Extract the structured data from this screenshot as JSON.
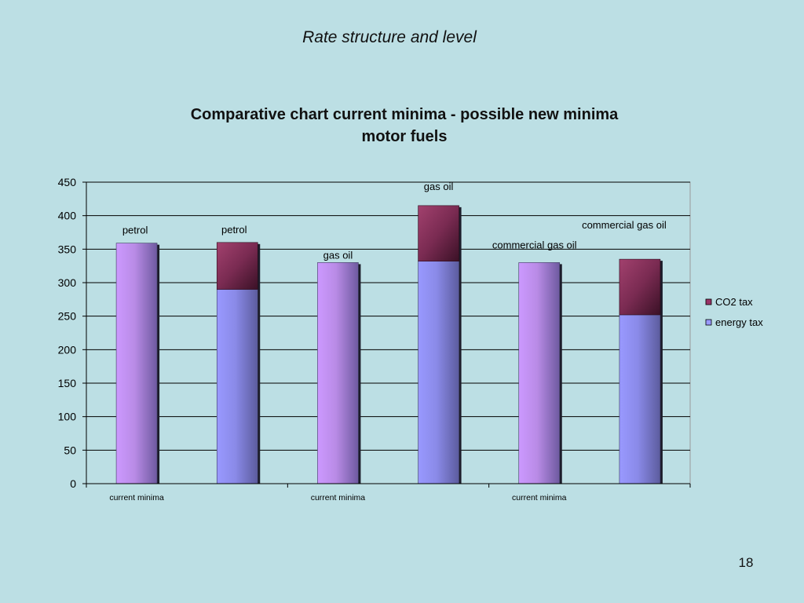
{
  "slide": {
    "title": "Rate structure and level",
    "page_number": "18"
  },
  "colors": {
    "background": "#bcdfe4",
    "energy_tax": "#9999ff",
    "co2_tax": "#993366",
    "current_minima": "#cc99ff"
  },
  "chart_data": {
    "type": "bar",
    "stacked": true,
    "title": "Comparative chart current minima - possible new minima",
    "subtitle": "motor fuels",
    "xlabel": "",
    "ylabel": "",
    "ylim": [
      0,
      450
    ],
    "yticks": [
      0,
      50,
      100,
      150,
      200,
      250,
      300,
      350,
      400,
      450
    ],
    "grid": true,
    "legend_position": "right",
    "categories": [
      "current minima",
      "",
      "current minima",
      "",
      "current minima",
      ""
    ],
    "bar_labels": [
      "petrol",
      "petrol",
      "gas oil",
      "gas oil",
      "commercial gas oil",
      "commercial gas oil"
    ],
    "series": [
      {
        "name": "energy tax",
        "values": [
          359,
          290,
          330,
          332,
          330,
          252
        ]
      },
      {
        "name": "CO2 tax",
        "values": [
          0,
          70,
          0,
          83,
          0,
          83
        ]
      }
    ]
  }
}
